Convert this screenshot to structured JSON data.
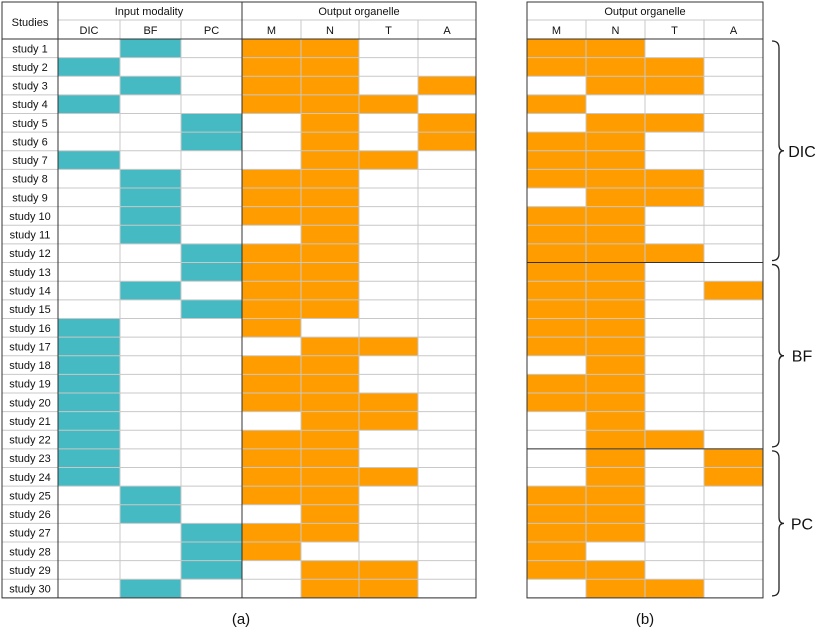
{
  "colors": {
    "input": "#45BAC3",
    "output": "#FE9C00",
    "grid": "#c8c8c8",
    "border": "#333333"
  },
  "panel_a": {
    "studies_header": "Studies",
    "input_header": "Input modality",
    "output_header": "Output organelle",
    "input_columns": [
      "DIC",
      "BF",
      "PC"
    ],
    "output_columns": [
      "M",
      "N",
      "T",
      "A"
    ],
    "caption": "(a)",
    "rows": [
      {
        "study": "study 1",
        "input": "BF",
        "output": [
          1,
          1,
          0,
          0
        ]
      },
      {
        "study": "study 2",
        "input": "DIC",
        "output": [
          1,
          1,
          0,
          0
        ]
      },
      {
        "study": "study 3",
        "input": "BF",
        "output": [
          1,
          1,
          0,
          1
        ]
      },
      {
        "study": "study 4",
        "input": "DIC",
        "output": [
          1,
          1,
          1,
          0
        ]
      },
      {
        "study": "study 5",
        "input": "PC",
        "output": [
          0,
          1,
          0,
          1
        ]
      },
      {
        "study": "study 6",
        "input": "PC",
        "output": [
          0,
          1,
          0,
          1
        ]
      },
      {
        "study": "study 7",
        "input": "DIC",
        "output": [
          0,
          1,
          1,
          0
        ]
      },
      {
        "study": "study 8",
        "input": "BF",
        "output": [
          1,
          1,
          0,
          0
        ]
      },
      {
        "study": "study 9",
        "input": "BF",
        "output": [
          1,
          1,
          0,
          0
        ]
      },
      {
        "study": "study 10",
        "input": "BF",
        "output": [
          1,
          1,
          0,
          0
        ]
      },
      {
        "study": "study 11",
        "input": "BF",
        "output": [
          0,
          1,
          0,
          0
        ]
      },
      {
        "study": "study 12",
        "input": "PC",
        "output": [
          1,
          1,
          0,
          0
        ]
      },
      {
        "study": "study 13",
        "input": "PC",
        "output": [
          1,
          1,
          0,
          0
        ]
      },
      {
        "study": "study 14",
        "input": "BF",
        "output": [
          1,
          1,
          0,
          0
        ]
      },
      {
        "study": "study 15",
        "input": "PC",
        "output": [
          1,
          1,
          0,
          0
        ]
      },
      {
        "study": "study 16",
        "input": "DIC",
        "output": [
          1,
          0,
          0,
          0
        ]
      },
      {
        "study": "study 17",
        "input": "DIC",
        "output": [
          0,
          1,
          1,
          0
        ]
      },
      {
        "study": "study 18",
        "input": "DIC",
        "output": [
          1,
          1,
          0,
          0
        ]
      },
      {
        "study": "study 19",
        "input": "DIC",
        "output": [
          1,
          1,
          0,
          0
        ]
      },
      {
        "study": "study 20",
        "input": "DIC",
        "output": [
          1,
          1,
          1,
          0
        ]
      },
      {
        "study": "study 21",
        "input": "DIC",
        "output": [
          0,
          1,
          1,
          0
        ]
      },
      {
        "study": "study 22",
        "input": "DIC",
        "output": [
          1,
          1,
          0,
          0
        ]
      },
      {
        "study": "study 23",
        "input": "DIC",
        "output": [
          1,
          1,
          0,
          0
        ]
      },
      {
        "study": "study 24",
        "input": "DIC",
        "output": [
          1,
          1,
          1,
          0
        ]
      },
      {
        "study": "study 25",
        "input": "BF",
        "output": [
          1,
          1,
          0,
          0
        ]
      },
      {
        "study": "study 26",
        "input": "BF",
        "output": [
          0,
          1,
          0,
          0
        ]
      },
      {
        "study": "study 27",
        "input": "PC",
        "output": [
          1,
          1,
          0,
          0
        ]
      },
      {
        "study": "study 28",
        "input": "PC",
        "output": [
          1,
          0,
          0,
          0
        ]
      },
      {
        "study": "study 29",
        "input": "PC",
        "output": [
          0,
          1,
          1,
          0
        ]
      },
      {
        "study": "study 30",
        "input": "BF",
        "output": [
          0,
          1,
          1,
          0
        ]
      }
    ]
  },
  "panel_b": {
    "output_header": "Output organelle",
    "output_columns": [
      "M",
      "N",
      "T",
      "A"
    ],
    "caption": "(b)",
    "rows": [
      [
        1,
        1,
        0,
        0
      ],
      [
        1,
        1,
        1,
        0
      ],
      [
        0,
        1,
        1,
        0
      ],
      [
        1,
        0,
        0,
        0
      ],
      [
        0,
        1,
        1,
        0
      ],
      [
        1,
        1,
        0,
        0
      ],
      [
        1,
        1,
        0,
        0
      ],
      [
        1,
        1,
        1,
        0
      ],
      [
        0,
        1,
        1,
        0
      ],
      [
        1,
        1,
        0,
        0
      ],
      [
        1,
        1,
        0,
        0
      ],
      [
        1,
        1,
        1,
        0
      ],
      [
        1,
        1,
        0,
        0
      ],
      [
        1,
        1,
        0,
        1
      ],
      [
        1,
        1,
        0,
        0
      ],
      [
        1,
        1,
        0,
        0
      ],
      [
        1,
        1,
        0,
        0
      ],
      [
        0,
        1,
        0,
        0
      ],
      [
        1,
        1,
        0,
        0
      ],
      [
        1,
        1,
        0,
        0
      ],
      [
        0,
        1,
        0,
        0
      ],
      [
        0,
        1,
        1,
        0
      ],
      [
        0,
        1,
        0,
        1
      ],
      [
        0,
        1,
        0,
        1
      ],
      [
        1,
        1,
        0,
        0
      ],
      [
        1,
        1,
        0,
        0
      ],
      [
        1,
        1,
        0,
        0
      ],
      [
        1,
        0,
        0,
        0
      ],
      [
        1,
        1,
        0,
        0
      ],
      [
        0,
        1,
        1,
        0
      ]
    ],
    "groups": [
      {
        "label": "DIC",
        "start": 0,
        "end": 12
      },
      {
        "label": "BF",
        "start": 12,
        "end": 22
      },
      {
        "label": "PC",
        "start": 22,
        "end": 30
      }
    ]
  }
}
